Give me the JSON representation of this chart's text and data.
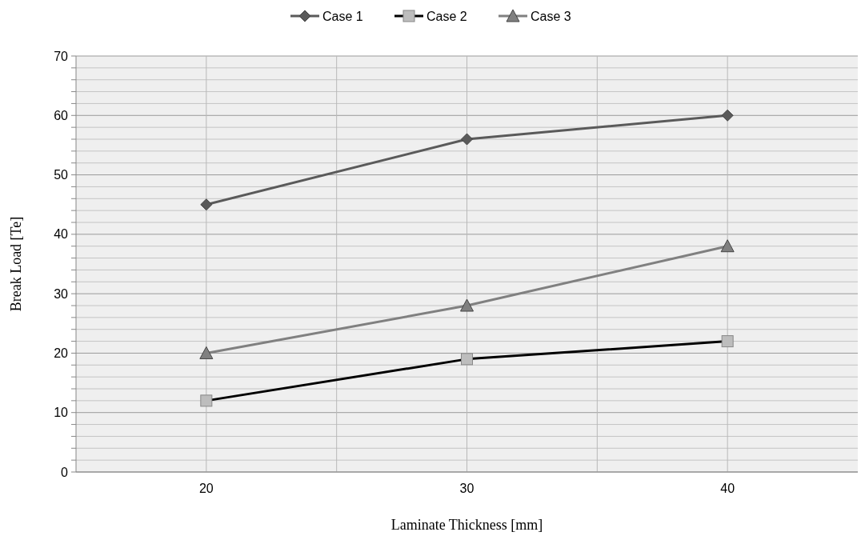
{
  "chart_data": {
    "type": "line",
    "xlabel": "Laminate Thickness [mm]",
    "ylabel": "Break Load [Te]",
    "x": [
      20,
      30,
      40
    ],
    "series": [
      {
        "name": "Case 1",
        "color": "#5a5a5a",
        "values": [
          45,
          56,
          60
        ],
        "marker": "diamond"
      },
      {
        "name": "Case 2",
        "color": "#000000",
        "values": [
          12,
          19,
          22
        ],
        "marker": "square"
      },
      {
        "name": "Case 3",
        "color": "#808080",
        "values": [
          20,
          28,
          38
        ],
        "marker": "triangle"
      }
    ],
    "xlim": [
      15,
      45
    ],
    "xticks": [
      20,
      {
        "value": 25,
        "label": null
      },
      30,
      {
        "value": 35,
        "label": null
      },
      40
    ],
    "ylim": [
      0,
      70
    ],
    "yticks": [
      0,
      {
        "value": 2,
        "label": null
      },
      {
        "value": 4,
        "label": null
      },
      {
        "value": 6,
        "label": null
      },
      {
        "value": 8,
        "label": null
      },
      10,
      {
        "value": 12,
        "label": null
      },
      {
        "value": 14,
        "label": null
      },
      {
        "value": 16,
        "label": null
      },
      {
        "value": 18,
        "label": null
      },
      20,
      {
        "value": 22,
        "label": null
      },
      {
        "value": 24,
        "label": null
      },
      {
        "value": 26,
        "label": null
      },
      {
        "value": 28,
        "label": null
      },
      30,
      {
        "value": 32,
        "label": null
      },
      {
        "value": 34,
        "label": null
      },
      {
        "value": 36,
        "label": null
      },
      {
        "value": 38,
        "label": null
      },
      40,
      {
        "value": 42,
        "label": null
      },
      {
        "value": 44,
        "label": null
      },
      {
        "value": 46,
        "label": null
      },
      {
        "value": 48,
        "label": null
      },
      50,
      {
        "value": 52,
        "label": null
      },
      {
        "value": 54,
        "label": null
      },
      {
        "value": 56,
        "label": null
      },
      {
        "value": 58,
        "label": null
      },
      60,
      {
        "value": 62,
        "label": null
      },
      {
        "value": 64,
        "label": null
      },
      {
        "value": 66,
        "label": null
      },
      {
        "value": 68,
        "label": null
      },
      70
    ],
    "grid": true,
    "legend": "top",
    "line_style": "solid"
  }
}
